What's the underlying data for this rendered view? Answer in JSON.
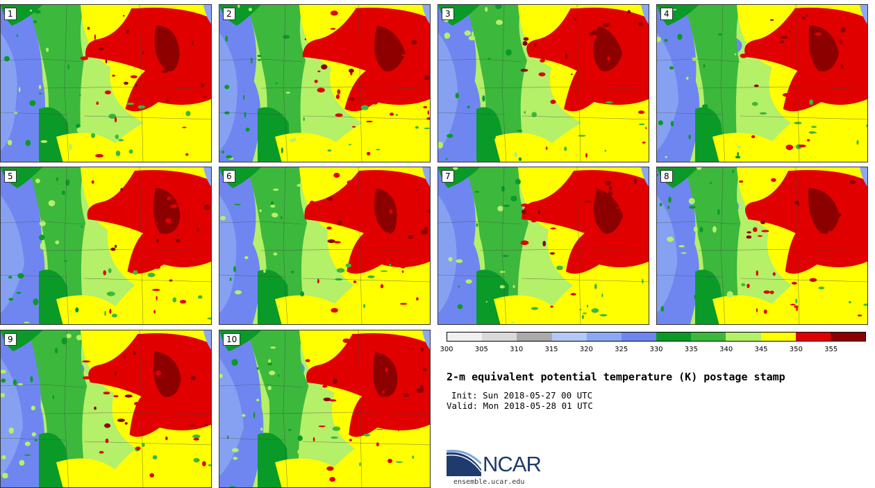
{
  "panels": [
    {
      "id": "p1",
      "number": "1"
    },
    {
      "id": "p2",
      "number": "2"
    },
    {
      "id": "p3",
      "number": "3"
    },
    {
      "id": "p4",
      "number": "4"
    },
    {
      "id": "p5",
      "number": "5"
    },
    {
      "id": "p6",
      "number": "6"
    },
    {
      "id": "p7",
      "number": "7"
    },
    {
      "id": "p8",
      "number": "8"
    },
    {
      "id": "p9",
      "number": "9"
    },
    {
      "id": "p10",
      "number": "10"
    }
  ],
  "colorbar": {
    "colors": [
      "#f0f0f0",
      "#d9d9d9",
      "#aaaaaa",
      "#b3c8f5",
      "#8ca8f2",
      "#6f86f0",
      "#0a9a28",
      "#3cb83c",
      "#b4f068",
      "#ffff00",
      "#e00000",
      "#8c0000"
    ],
    "tick_labels": [
      "300",
      "305",
      "310",
      "315",
      "320",
      "325",
      "330",
      "335",
      "340",
      "345",
      "350",
      "355"
    ]
  },
  "title": "2-m equivalent potential temperature (K) postage stamp",
  "init": "Init: Sun 2018-05-27 00 UTC",
  "valid": "Valid: Mon 2018-05-28 01 UTC",
  "logo": {
    "text": "NCAR",
    "url": "ensemble.ucar.edu"
  }
}
